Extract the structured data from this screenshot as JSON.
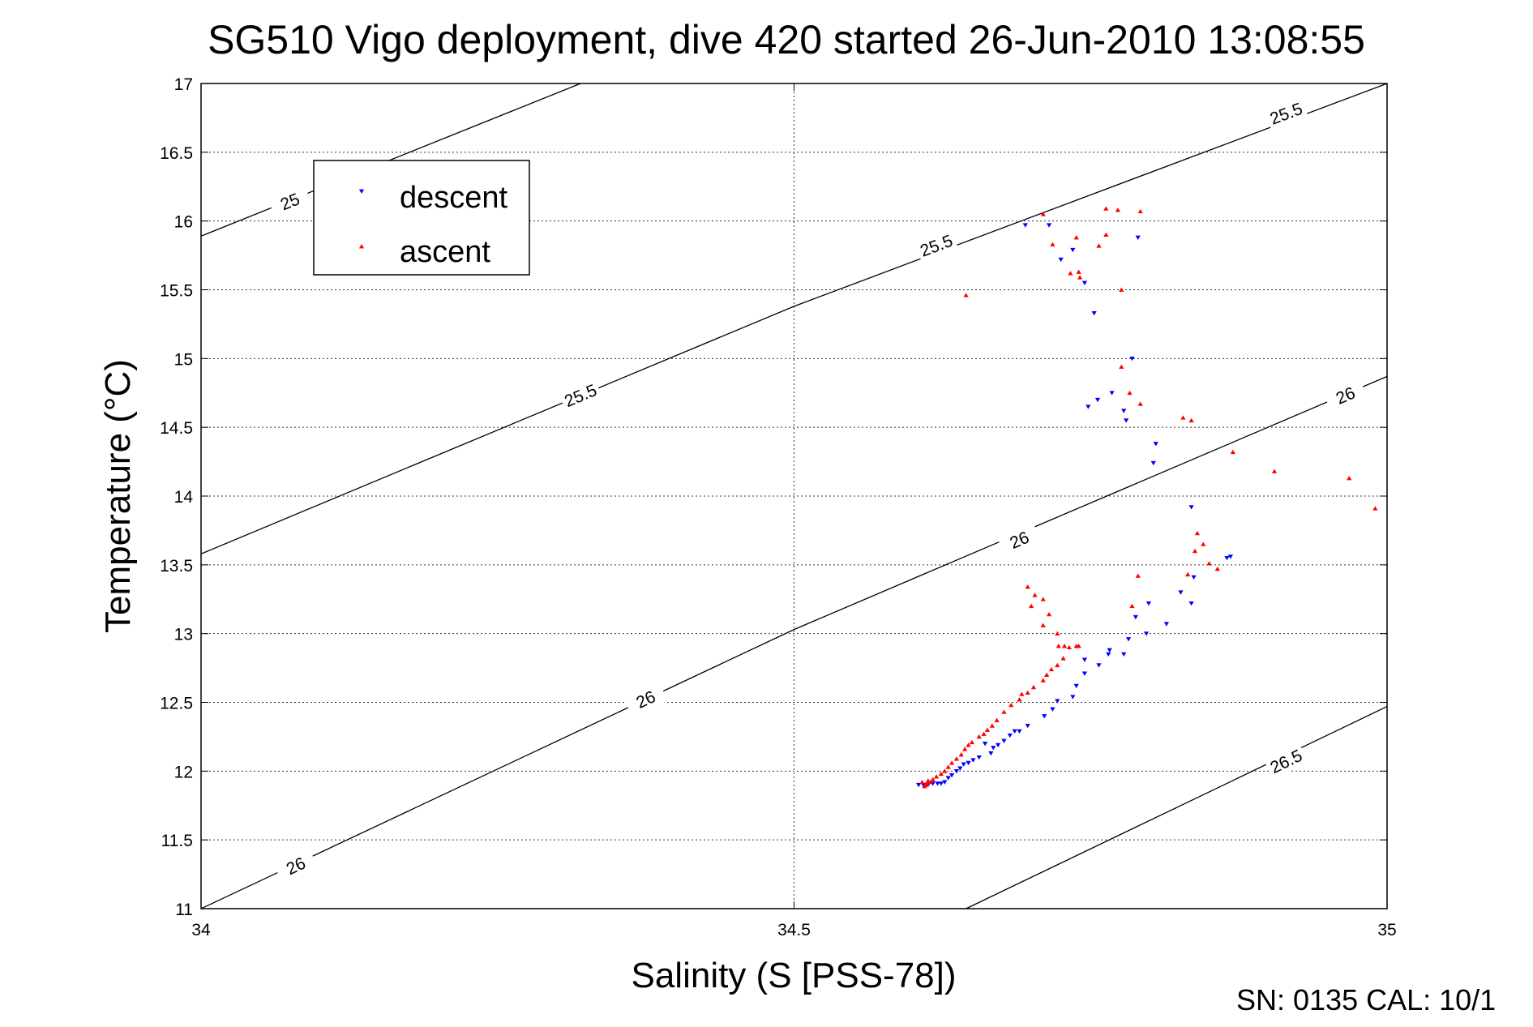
{
  "chart_data": {
    "type": "scatter",
    "title": "SG510 Vigo deployment, dive 420 started 26-Jun-2010 13:08:55",
    "xlabel": "Salinity (S [PSS-78])",
    "ylabel": "Temperature (°C)",
    "xlim": [
      34,
      35
    ],
    "ylim": [
      11,
      17
    ],
    "xticks": [
      34,
      34.5,
      35
    ],
    "xtick_labels": [
      "34",
      "34.5",
      "35"
    ],
    "yticks": [
      11,
      11.5,
      12,
      12.5,
      13,
      13.5,
      14,
      14.5,
      15,
      15.5,
      16,
      16.5,
      17
    ],
    "ytick_labels": [
      "11",
      "11.5",
      "12",
      "12.5",
      "13",
      "13.5",
      "14",
      "14.5",
      "15",
      "15.5",
      "16",
      "16.5",
      "17"
    ],
    "grid": true,
    "legend": {
      "position": "top-left"
    },
    "footer": "SN: 0135  CAL: 10/1",
    "contours": [
      {
        "level": "25",
        "points": [
          [
            34,
            15.89
          ],
          [
            34.32,
            17.0
          ]
        ],
        "labels": [
          {
            "s": 34.075,
            "t": 16.14
          }
        ]
      },
      {
        "level": "25.5",
        "points": [
          [
            34,
            13.58
          ],
          [
            34.5,
            15.38
          ],
          [
            35,
            17.0
          ]
        ],
        "labels": [
          {
            "s": 34.32,
            "t": 14.73
          },
          {
            "s": 34.62,
            "t": 15.82
          },
          {
            "s": 34.915,
            "t": 16.78
          }
        ]
      },
      {
        "level": "26",
        "points": [
          [
            34,
            11.0
          ],
          [
            34.5,
            13.03
          ],
          [
            35,
            14.87
          ]
        ],
        "labels": [
          {
            "s": 34.08,
            "t": 11.31
          },
          {
            "s": 34.375,
            "t": 12.52
          },
          {
            "s": 34.69,
            "t": 13.68
          },
          {
            "s": 34.965,
            "t": 14.73
          }
        ]
      },
      {
        "level": "26.5",
        "points": [
          [
            34.645,
            11.0
          ],
          [
            35,
            12.47
          ]
        ],
        "labels": [
          {
            "s": 34.915,
            "t": 12.07
          }
        ]
      }
    ],
    "series": [
      {
        "name": "descent",
        "color": "#0000ff",
        "marker": "triangle-down",
        "points": [
          [
            34.695,
            15.97
          ],
          [
            34.715,
            15.97
          ],
          [
            34.725,
            15.72
          ],
          [
            34.735,
            15.79
          ],
          [
            34.745,
            15.55
          ],
          [
            34.753,
            15.33
          ],
          [
            34.79,
            15.88
          ],
          [
            34.785,
            15.0
          ],
          [
            34.768,
            14.75
          ],
          [
            34.778,
            14.62
          ],
          [
            34.78,
            14.55
          ],
          [
            34.756,
            14.7
          ],
          [
            34.748,
            14.65
          ],
          [
            34.805,
            14.38
          ],
          [
            34.803,
            14.24
          ],
          [
            34.835,
            13.92
          ],
          [
            34.868,
            13.56
          ],
          [
            34.865,
            13.55
          ],
          [
            34.837,
            13.41
          ],
          [
            34.835,
            13.22
          ],
          [
            34.826,
            13.3
          ],
          [
            34.814,
            13.07
          ],
          [
            34.799,
            13.22
          ],
          [
            34.797,
            13.0
          ],
          [
            34.788,
            13.12
          ],
          [
            34.782,
            12.96
          ],
          [
            34.765,
            12.85
          ],
          [
            34.778,
            12.85
          ],
          [
            34.766,
            12.88
          ],
          [
            34.757,
            12.77
          ],
          [
            34.745,
            12.81
          ],
          [
            34.745,
            12.71
          ],
          [
            34.738,
            12.62
          ],
          [
            34.735,
            12.54
          ],
          [
            34.722,
            12.51
          ],
          [
            34.718,
            12.45
          ],
          [
            34.711,
            12.4
          ],
          [
            34.697,
            12.33
          ],
          [
            34.69,
            12.29
          ],
          [
            34.686,
            12.29
          ],
          [
            34.682,
            12.26
          ],
          [
            34.677,
            12.22
          ],
          [
            34.672,
            12.19
          ],
          [
            34.668,
            12.17
          ],
          [
            34.661,
            12.2
          ],
          [
            34.666,
            12.13
          ],
          [
            34.656,
            12.1
          ],
          [
            34.651,
            12.08
          ],
          [
            34.647,
            12.06
          ],
          [
            34.643,
            12.05
          ],
          [
            34.64,
            12.02
          ],
          [
            34.637,
            12.0
          ],
          [
            34.633,
            11.97
          ],
          [
            34.63,
            11.95
          ],
          [
            34.627,
            11.92
          ],
          [
            34.624,
            11.91
          ],
          [
            34.621,
            11.91
          ],
          [
            34.617,
            11.91
          ],
          [
            34.613,
            11.9
          ],
          [
            34.609,
            11.9
          ],
          [
            34.605,
            11.9
          ]
        ]
      },
      {
        "name": "ascent",
        "color": "#ff0000",
        "marker": "triangle-up",
        "points": [
          [
            34.645,
            15.46
          ],
          [
            34.71,
            16.05
          ],
          [
            34.718,
            15.83
          ],
          [
            34.741,
            15.59
          ],
          [
            34.757,
            15.82
          ],
          [
            34.738,
            15.88
          ],
          [
            34.74,
            15.63
          ],
          [
            34.733,
            15.62
          ],
          [
            34.763,
            16.09
          ],
          [
            34.773,
            16.08
          ],
          [
            34.792,
            16.07
          ],
          [
            34.763,
            15.9
          ],
          [
            34.776,
            15.5
          ],
          [
            34.776,
            14.94
          ],
          [
            34.783,
            14.75
          ],
          [
            34.792,
            14.67
          ],
          [
            34.828,
            14.57
          ],
          [
            34.835,
            14.55
          ],
          [
            34.87,
            14.32
          ],
          [
            34.905,
            14.18
          ],
          [
            34.968,
            14.13
          ],
          [
            34.99,
            13.91
          ],
          [
            34.84,
            13.73
          ],
          [
            34.845,
            13.65
          ],
          [
            34.838,
            13.6
          ],
          [
            34.85,
            13.51
          ],
          [
            34.857,
            13.47
          ],
          [
            34.832,
            13.43
          ],
          [
            34.79,
            13.42
          ],
          [
            34.785,
            13.2
          ],
          [
            34.697,
            13.34
          ],
          [
            34.703,
            13.28
          ],
          [
            34.71,
            13.25
          ],
          [
            34.715,
            13.14
          ],
          [
            34.7,
            13.2
          ],
          [
            34.71,
            13.06
          ],
          [
            34.722,
            13.0
          ],
          [
            34.723,
            12.91
          ],
          [
            34.728,
            12.91
          ],
          [
            34.732,
            12.9
          ],
          [
            34.738,
            12.91
          ],
          [
            34.74,
            12.91
          ],
          [
            34.727,
            12.82
          ],
          [
            34.722,
            12.77
          ],
          [
            34.717,
            12.74
          ],
          [
            34.713,
            12.7
          ],
          [
            34.71,
            12.66
          ],
          [
            34.702,
            12.61
          ],
          [
            34.697,
            12.57
          ],
          [
            34.692,
            12.56
          ],
          [
            34.69,
            12.52
          ],
          [
            34.683,
            12.48
          ],
          [
            34.677,
            12.43
          ],
          [
            34.671,
            12.37
          ],
          [
            34.667,
            12.33
          ],
          [
            34.663,
            12.3
          ],
          [
            34.66,
            12.27
          ],
          [
            34.656,
            12.25
          ],
          [
            34.65,
            12.21
          ],
          [
            34.647,
            12.19
          ],
          [
            34.644,
            12.16
          ],
          [
            34.641,
            12.12
          ],
          [
            34.637,
            12.09
          ],
          [
            34.633,
            12.06
          ],
          [
            34.63,
            12.03
          ],
          [
            34.627,
            12.0
          ],
          [
            34.624,
            11.98
          ],
          [
            34.62,
            11.96
          ],
          [
            34.617,
            11.94
          ],
          [
            34.615,
            11.92
          ],
          [
            34.612,
            11.91
          ],
          [
            34.611,
            11.9
          ],
          [
            34.61,
            11.89
          ],
          [
            34.608,
            11.92
          ],
          [
            34.613,
            11.93
          ]
        ]
      }
    ]
  }
}
